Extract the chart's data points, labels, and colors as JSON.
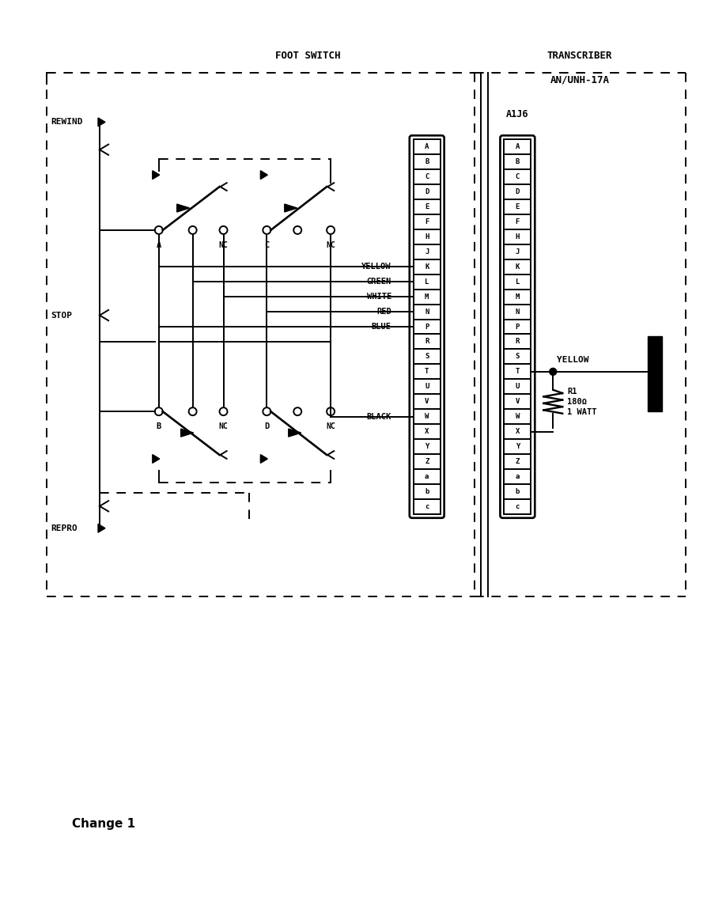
{
  "title": "Change 1",
  "foot_switch_label": "FOOT SWITCH",
  "transcriber_label1": "TRANSCRIBER",
  "transcriber_label2": "AN/UNH-17A",
  "connector_label": "A1J6",
  "rewind_label": "REWIND",
  "stop_label": "STOP",
  "repro_label": "REPRO",
  "connector_pins": [
    "A",
    "B",
    "C",
    "D",
    "E",
    "F",
    "H",
    "J",
    "K",
    "L",
    "M",
    "N",
    "P",
    "R",
    "S",
    "T",
    "U",
    "V",
    "W",
    "X",
    "Y",
    "Z",
    "a",
    "b",
    "c"
  ],
  "wire_labels": [
    "YELLOW",
    "GREEN",
    "WHITE",
    "RED",
    "BLUE"
  ],
  "wire_label_black": "BLACK",
  "wire_label_yellow2": "YELLOW",
  "resistor_label": "R1\n180Ω\n1 WATT",
  "bg_color": "#ffffff",
  "line_color": "#000000"
}
